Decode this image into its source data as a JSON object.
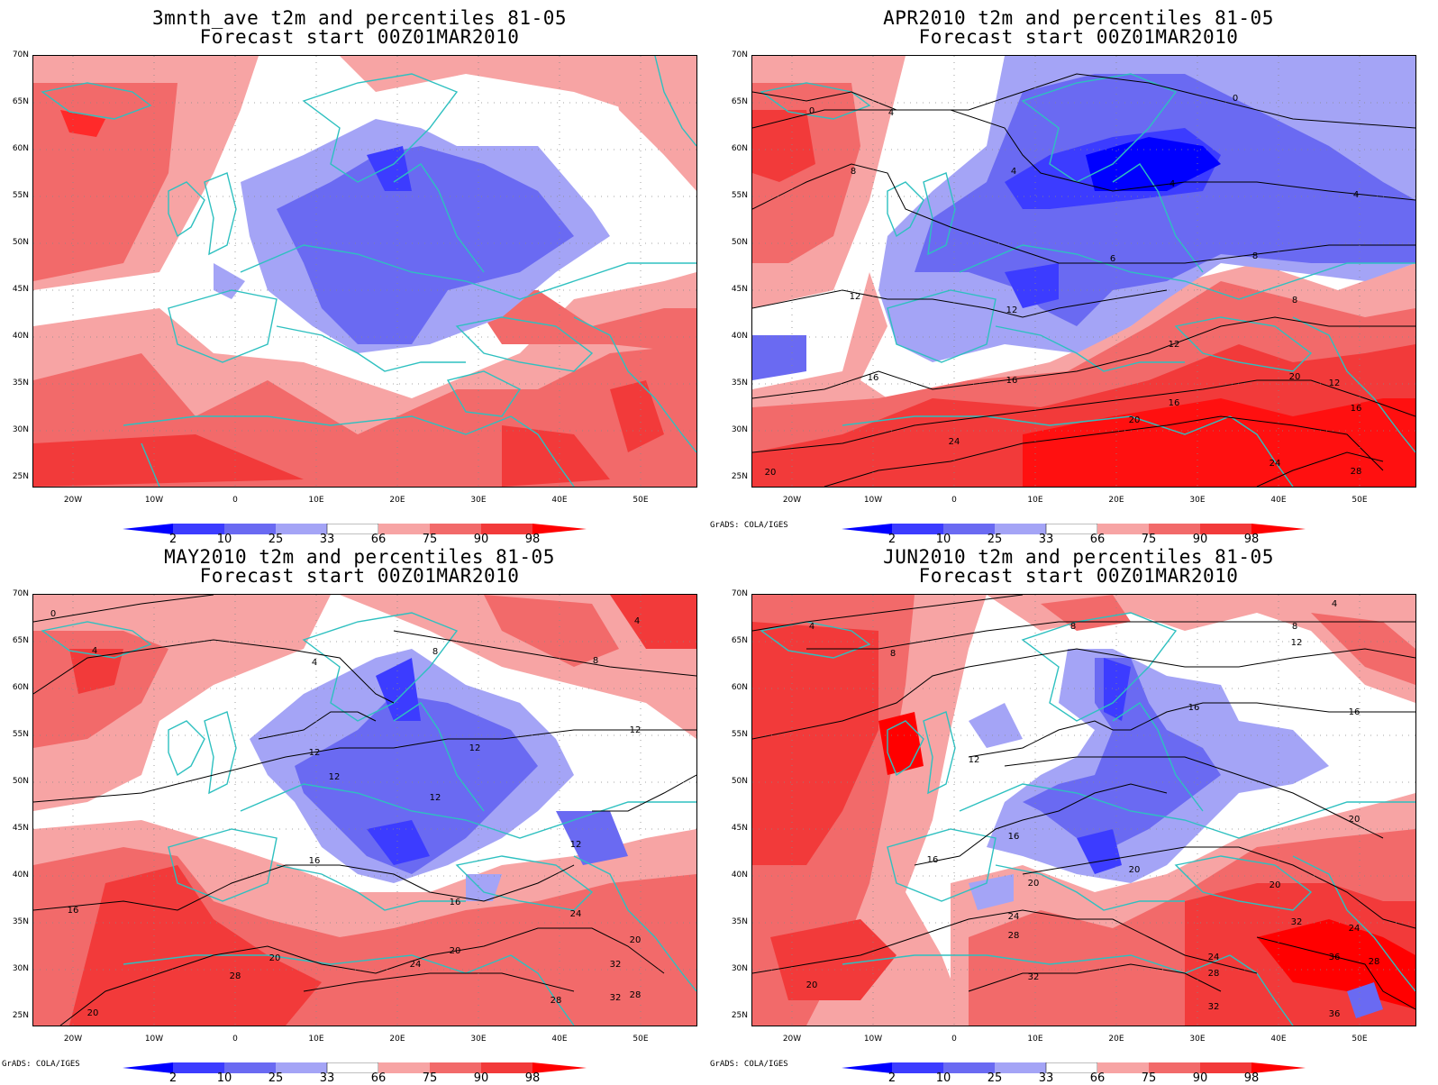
{
  "panels": [
    {
      "title": "3mnth_ave t2m and percentiles 81-05",
      "subtitle": "Forecast start 00Z01MAR2010",
      "grads": ""
    },
    {
      "title": "APR2010 t2m and percentiles 81-05",
      "subtitle": "Forecast start 00Z01MAR2010",
      "grads": "GrADS: COLA/IGES"
    },
    {
      "title": "MAY2010 t2m and percentiles 81-05",
      "subtitle": "Forecast start 00Z01MAR2010",
      "grads": "GrADS: COLA/IGES"
    },
    {
      "title": "JUN2010 t2m and percentiles 81-05",
      "subtitle": "Forecast start 00Z01MAR2010",
      "grads": "GrADS: COLA/IGES"
    }
  ],
  "lat_labels": [
    "70N",
    "65N",
    "60N",
    "55N",
    "50N",
    "45N",
    "40N",
    "35N",
    "30N",
    "25N"
  ],
  "lon_labels": [
    "20W",
    "10W",
    "0",
    "10E",
    "20E",
    "30E",
    "40E",
    "50E"
  ],
  "colorbar": {
    "labels": [
      "2",
      "10",
      "25",
      "33",
      "66",
      "75",
      "90",
      "98"
    ],
    "colors": [
      "#0000ff",
      "#3c3cff",
      "#6a6af2",
      "#a4a4f6",
      "#ffffff",
      "#f7a4a4",
      "#f26a6a",
      "#f23a3a",
      "#ff0000"
    ]
  },
  "colors": {
    "coast": "#2ec0c0",
    "contour": "#000000"
  },
  "contour_labels": {
    "apr": [
      "0",
      "4",
      "0",
      "4",
      "8",
      "4",
      "4",
      "6",
      "8",
      "12",
      "12",
      "16",
      "16",
      "12",
      "20",
      "16",
      "8",
      "12",
      "20",
      "16",
      "24",
      "24",
      "20",
      "28"
    ],
    "may": [
      "0",
      "4",
      "4",
      "4",
      "8",
      "8",
      "12",
      "12",
      "12",
      "12",
      "12",
      "16",
      "16",
      "20",
      "20",
      "24",
      "28",
      "24",
      "16",
      "20",
      "12",
      "32",
      "28",
      "32",
      "28",
      "20"
    ],
    "jun": [
      "4",
      "4",
      "8",
      "8",
      "8",
      "12",
      "12",
      "16",
      "16",
      "16",
      "20",
      "16",
      "20",
      "20",
      "20",
      "24",
      "28",
      "32",
      "24",
      "28",
      "32",
      "36",
      "32",
      "20",
      "24",
      "36",
      "28"
    ]
  }
}
